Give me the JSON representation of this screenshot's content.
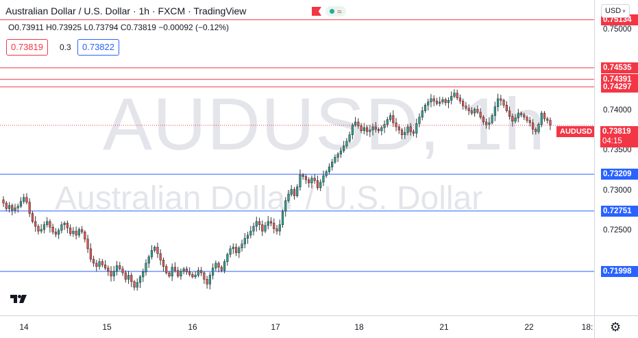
{
  "legend": {
    "title": "Australian Dollar / U.S. Dollar · 1h · FXCM · TradingView",
    "ohlc": "O0.73911 H0.73925 L0.73794 C0.73819 −0.00092 (−0.12%)",
    "sell_price": "0.73819",
    "spread": "0.3",
    "buy_price": "0.73822"
  },
  "watermark": {
    "symbol": "AUDUSD, 1h",
    "name": "Australian Dollar / U.S. Dollar"
  },
  "currency": "USD",
  "symbol_tag": "AUDUSD",
  "current_price": "0.73819",
  "countdown": "04:15",
  "price_ticks": [
    "0.75000",
    "0.74000",
    "0.73500",
    "0.73000",
    "0.72500"
  ],
  "horizontal_lines": [
    {
      "price": "0.75134",
      "color": "#f23645"
    },
    {
      "price": "0.74535",
      "color": "#f23645"
    },
    {
      "price": "0.74391",
      "color": "#f23645"
    },
    {
      "price": "0.74297",
      "color": "#f23645"
    },
    {
      "price": "0.73209",
      "color": "#2962ff"
    },
    {
      "price": "0.72751",
      "color": "#2962ff"
    },
    {
      "price": "0.71998",
      "color": "#2962ff"
    }
  ],
  "time_ticks": [
    "14",
    "15",
    "16",
    "17",
    "18",
    "21",
    "22",
    "18:"
  ],
  "colors": {
    "up": "#26a69a",
    "down": "#ef5350",
    "wick": "#333333",
    "resistance": "#f23645",
    "support": "#2962ff"
  },
  "icons": {
    "settings": "gear-icon",
    "flag": "flag-icon",
    "market_status": "market-open-icon"
  },
  "chart_data": {
    "type": "candlestick",
    "interval": "1h",
    "ylim": [
      0.7145,
      0.7538
    ],
    "current_price": 0.73819,
    "closes": [
      0.7285,
      0.7278,
      0.7282,
      0.7276,
      0.7279,
      0.7281,
      0.7287,
      0.7292,
      0.7286,
      0.7272,
      0.7262,
      0.7256,
      0.725,
      0.7252,
      0.7258,
      0.7262,
      0.7255,
      0.7249,
      0.7246,
      0.7251,
      0.7258,
      0.726,
      0.7254,
      0.7247,
      0.725,
      0.7245,
      0.7252,
      0.7249,
      0.724,
      0.7228,
      0.7215,
      0.721,
      0.7206,
      0.7212,
      0.7208,
      0.7204,
      0.72,
      0.7194,
      0.72,
      0.7207,
      0.7203,
      0.7198,
      0.719,
      0.7195,
      0.7187,
      0.718,
      0.7186,
      0.7193,
      0.7199,
      0.721,
      0.7218,
      0.7226,
      0.723,
      0.7222,
      0.7214,
      0.7206,
      0.7198,
      0.7194,
      0.7205,
      0.7201,
      0.7194,
      0.72,
      0.7203,
      0.7199,
      0.7196,
      0.7193,
      0.7195,
      0.7201,
      0.7198,
      0.719,
      0.7184,
      0.7195,
      0.7204,
      0.721,
      0.7205,
      0.7201,
      0.7212,
      0.7221,
      0.7228,
      0.723,
      0.7223,
      0.7229,
      0.7234,
      0.7241,
      0.7245,
      0.725,
      0.7256,
      0.7262,
      0.7258,
      0.725,
      0.7257,
      0.7262,
      0.726,
      0.7253,
      0.725,
      0.7258,
      0.7275,
      0.7288,
      0.7296,
      0.7302,
      0.7294,
      0.7305,
      0.732,
      0.7318,
      0.7314,
      0.731,
      0.7316,
      0.7313,
      0.7304,
      0.7311,
      0.7319,
      0.7324,
      0.733,
      0.7336,
      0.7342,
      0.7346,
      0.735,
      0.7356,
      0.7362,
      0.737,
      0.7382,
      0.7386,
      0.7381,
      0.7375,
      0.7379,
      0.7374,
      0.7376,
      0.738,
      0.7377,
      0.7375,
      0.7379,
      0.7383,
      0.7389,
      0.7394,
      0.7385,
      0.738,
      0.7376,
      0.737,
      0.7373,
      0.738,
      0.7374,
      0.7372,
      0.7384,
      0.7392,
      0.74,
      0.7407,
      0.7411,
      0.7415,
      0.7412,
      0.7409,
      0.7411,
      0.7414,
      0.741,
      0.7413,
      0.7418,
      0.7422,
      0.7416,
      0.7412,
      0.7406,
      0.7403,
      0.74,
      0.7397,
      0.7402,
      0.7398,
      0.7392,
      0.7386,
      0.7383,
      0.7385,
      0.7394,
      0.7405,
      0.7415,
      0.7413,
      0.7407,
      0.74,
      0.7393,
      0.7387,
      0.7391,
      0.7397,
      0.7395,
      0.7392,
      0.7388,
      0.7385,
      0.7377,
      0.7374,
      0.7383,
      0.7397,
      0.739,
      0.7388,
      0.7382
    ]
  }
}
